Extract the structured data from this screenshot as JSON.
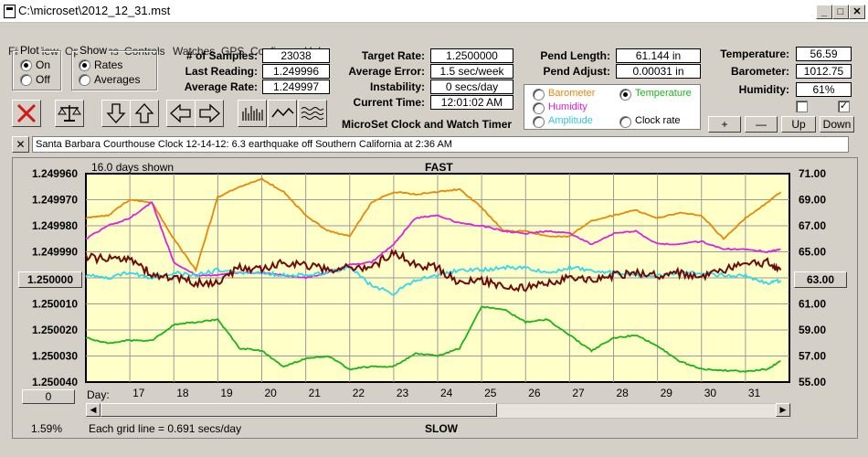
{
  "window": {
    "title": "C:\\microset\\2012_12_31.mst"
  },
  "menu": [
    "File",
    "View",
    "Operations",
    "Controls",
    "Watches",
    "GPS",
    "Configure",
    "Help"
  ],
  "plot_group": {
    "label": "Plot",
    "options": [
      "On",
      "Off"
    ],
    "selected": "On"
  },
  "show_group": {
    "label": "Show",
    "options": [
      "Rates",
      "Averages"
    ],
    "selected": "Rates"
  },
  "stats": {
    "samples_label": "# of Samples:",
    "samples": "23038",
    "last_label": "Last Reading:",
    "last": "1.249996",
    "avg_label": "Average Rate:",
    "avg": "1.249997"
  },
  "rates": {
    "target_label": "Target Rate:",
    "target": "1.2500000",
    "error_label": "Average Error:",
    "error": "1.5 sec/week",
    "instab_label": "Instability:",
    "instab": "0 secs/day",
    "time_label": "Current Time:",
    "time": "12:01:02 AM"
  },
  "pend": {
    "length_label": "Pend Length:",
    "length": "61.144 in",
    "adjust_label": "Pend Adjust:",
    "adjust": "0.00031 in"
  },
  "env": {
    "temp_label": "Temperature:",
    "temp": "56.59",
    "baro_label": "Barometer:",
    "baro": "1012.75",
    "hum_label": "Humidity:",
    "hum": "61%"
  },
  "series_select": {
    "barometer": "Barometer",
    "temperature": "Temperature",
    "humidity": "Humidity",
    "amplitude": "Amplitude",
    "clock_rate": "Clock rate",
    "selected": "Temperature"
  },
  "app_name": "MicroSet Clock and Watch Timer",
  "adjust_buttons": {
    "plus": "+",
    "minus": "—",
    "up": "Up",
    "down": "Down"
  },
  "note": {
    "close": "✕",
    "text": "Santa Barbara Courthouse Clock       12-14-12: 6.3 earthquake off Southern California at 2:36 AM"
  },
  "chart_header": {
    "days_shown": "16.0 days shown",
    "fast": "FAST",
    "slow": "SLOW",
    "grid_line": "Each grid line = 0.691 secs/day",
    "pct": "1.59%",
    "day_label": "Day:",
    "left_spin": "0",
    "center_rate": "1.250000",
    "center_temp": "63.00"
  },
  "colors": {
    "plot_bg": "#ffffc8",
    "barometer": "#e8860a",
    "temperature": "#1ab41a",
    "humidity": "#e020e0",
    "amplitude": "#30d8f0",
    "rate": "#6e0a0a"
  },
  "chart_data": {
    "type": "line",
    "x_label": "Day",
    "x_ticks": [
      "17",
      "18",
      "19",
      "20",
      "21",
      "22",
      "23",
      "24",
      "25",
      "26",
      "27",
      "28",
      "29",
      "30",
      "31"
    ],
    "x_range": [
      16.0,
      32.0
    ],
    "ylim_left": [
      1.25004,
      1.24996
    ],
    "y_ticks_left": [
      "1.249960",
      "1.249970",
      "1.249980",
      "1.249990",
      "1.250000",
      "1.250010",
      "1.250020",
      "1.250030",
      "1.250040"
    ],
    "ylim_right": [
      55.0,
      71.0
    ],
    "y_ticks_right": [
      "71.00",
      "69.00",
      "67.00",
      "65.00",
      "63.00",
      "61.00",
      "59.00",
      "57.00",
      "55.00"
    ],
    "series": [
      {
        "key": "barometer",
        "x": [
          16.0,
          16.5,
          17.0,
          17.5,
          18.0,
          18.5,
          19.0,
          19.5,
          20.0,
          20.5,
          21.0,
          21.5,
          22.0,
          22.5,
          23.0,
          23.5,
          24.0,
          24.5,
          25.0,
          25.5,
          26.0,
          26.5,
          27.0,
          27.5,
          28.0,
          28.5,
          29.0,
          29.5,
          30.0,
          30.5,
          31.0,
          31.5,
          31.8
        ],
        "y": [
          67.6,
          67.8,
          69.0,
          68.8,
          66.0,
          63.6,
          69.2,
          70.0,
          70.6,
          69.6,
          67.8,
          66.6,
          66.2,
          68.8,
          69.6,
          69.4,
          69.6,
          69.8,
          68.4,
          66.6,
          66.6,
          66.2,
          66.2,
          67.4,
          67.8,
          68.2,
          67.6,
          68.0,
          67.8,
          66.0,
          67.6,
          68.8,
          69.6
        ]
      },
      {
        "key": "temperature",
        "x": [
          16.0,
          16.5,
          17.0,
          17.5,
          18.0,
          18.5,
          19.0,
          19.5,
          20.0,
          20.5,
          21.0,
          21.5,
          22.0,
          22.5,
          23.0,
          23.5,
          24.0,
          24.5,
          25.0,
          25.5,
          26.0,
          26.5,
          27.0,
          27.5,
          28.0,
          28.5,
          29.0,
          29.5,
          30.0,
          30.5,
          31.0,
          31.5,
          31.8
        ],
        "y": [
          58.4,
          58.0,
          58.2,
          58.2,
          59.4,
          59.6,
          59.8,
          57.6,
          57.4,
          56.2,
          56.8,
          57.0,
          56.0,
          56.2,
          56.2,
          57.2,
          57.0,
          57.6,
          60.8,
          60.6,
          59.6,
          59.8,
          58.6,
          57.4,
          58.4,
          58.6,
          57.8,
          56.6,
          56.0,
          55.9,
          55.8,
          56.0,
          56.6
        ]
      },
      {
        "key": "humidity",
        "x": [
          16.0,
          16.5,
          17.0,
          17.5,
          18.0,
          18.5,
          19.0,
          19.5,
          20.0,
          20.5,
          21.0,
          21.5,
          22.0,
          22.5,
          23.0,
          23.5,
          24.0,
          24.5,
          25.0,
          25.5,
          26.0,
          26.5,
          27.0,
          27.5,
          28.0,
          28.5,
          29.0,
          29.5,
          30.0,
          30.5,
          31.0,
          31.5,
          31.8
        ],
        "y": [
          66.0,
          67.0,
          67.6,
          68.8,
          64.2,
          63.2,
          63.2,
          63.4,
          63.4,
          63.2,
          63.0,
          63.4,
          64.0,
          64.2,
          65.6,
          67.6,
          67.8,
          67.2,
          67.0,
          66.6,
          66.4,
          66.6,
          66.4,
          65.6,
          66.4,
          66.6,
          65.6,
          65.6,
          65.8,
          65.2,
          65.2,
          65.0,
          65.2
        ]
      },
      {
        "key": "amplitude",
        "x": [
          16.0,
          16.5,
          17.0,
          17.5,
          18.0,
          18.5,
          19.0,
          19.5,
          20.0,
          20.5,
          21.0,
          21.5,
          22.0,
          22.5,
          23.0,
          23.5,
          24.0,
          24.5,
          25.0,
          25.5,
          26.0,
          26.5,
          27.0,
          27.5,
          28.0,
          28.5,
          29.0,
          29.5,
          30.0,
          30.5,
          31.0,
          31.5,
          31.8
        ],
        "y": [
          1.249999,
          1.25,
          1.249998,
          1.25,
          1.249998,
          1.249999,
          1.249997,
          1.249998,
          1.249998,
          1.249999,
          1.249999,
          1.249998,
          1.249996,
          1.250003,
          1.250006,
          1.250001,
          1.249999,
          1.249997,
          1.249997,
          1.249996,
          1.249996,
          1.249998,
          1.249996,
          1.249997,
          1.249998,
          1.249999,
          1.249999,
          1.249998,
          1.249998,
          1.249999,
          1.249999,
          1.250002,
          1.250001
        ]
      },
      {
        "key": "rate",
        "x": [
          16.0,
          16.5,
          17.0,
          17.5,
          18.0,
          18.5,
          19.0,
          19.5,
          20.0,
          20.5,
          21.0,
          21.5,
          22.0,
          22.5,
          23.0,
          23.5,
          24.0,
          24.5,
          25.0,
          25.5,
          26.0,
          26.5,
          27.0,
          27.5,
          28.0,
          28.5,
          29.0,
          29.5,
          30.0,
          30.5,
          31.0,
          31.5,
          31.8
        ],
        "y": [
          1.249992,
          1.249993,
          1.249992,
          1.249999,
          1.25,
          1.250002,
          1.250002,
          1.249996,
          1.249997,
          1.249994,
          1.249995,
          1.249997,
          1.249996,
          1.249996,
          1.24999,
          1.249995,
          1.249996,
          1.250002,
          1.250001,
          1.250003,
          1.250004,
          1.250002,
          1.25,
          1.250001,
          1.249999,
          1.249998,
          1.249999,
          1.249998,
          1.25,
          1.249997,
          1.249995,
          1.249994,
          1.249997
        ]
      }
    ]
  }
}
